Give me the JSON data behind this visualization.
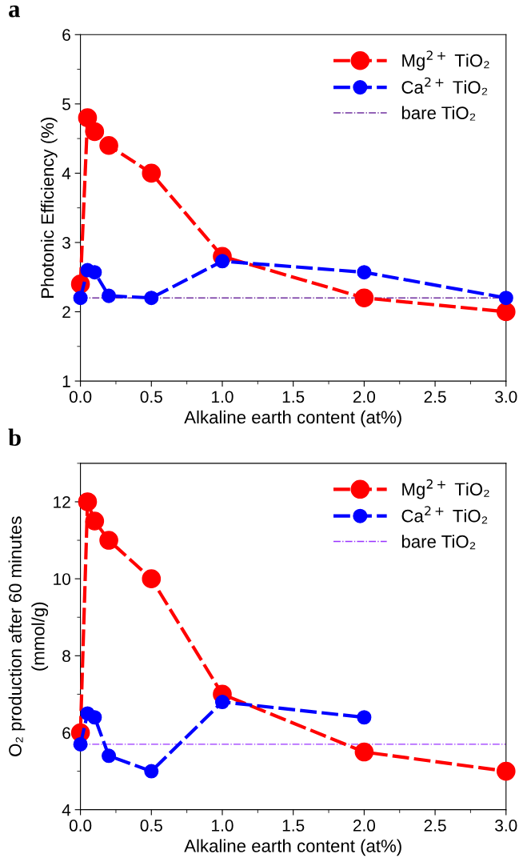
{
  "chart_data": [
    {
      "type": "line",
      "title": "a",
      "xlabel": "Alkaline earth content (at%)",
      "ylabel": "Photonic Efficiency (%)",
      "xlim": [
        0,
        3
      ],
      "xticks": [
        {
          "value": 0,
          "label": "0.0"
        },
        0.5,
        {
          "value": 1,
          "label": "1.0"
        },
        1.5,
        {
          "value": 2,
          "label": "2.0"
        },
        2.5,
        {
          "value": 3,
          "label": "3.0"
        }
      ],
      "ylim": [
        1,
        6
      ],
      "yticks": [
        1,
        2,
        3,
        4,
        5,
        6
      ],
      "marker": "circle",
      "line_style": "dashed",
      "legend": "top right",
      "grid": false,
      "series": [
        {
          "name": "Mg$^{2+}$ TiO₂",
          "color": "#ff0000",
          "x": [
            0,
            0.05,
            0.1,
            0.2,
            0.5,
            1,
            2,
            3
          ],
          "values": [
            2.4,
            4.8,
            4.6,
            4.4,
            4.0,
            2.8,
            2.2,
            2.0
          ]
        },
        {
          "name": "Ca$^{2+}$ TiO₂",
          "color": "#0000ff",
          "x": [
            0,
            0.05,
            0.1,
            0.2,
            0.5,
            1,
            2,
            3
          ],
          "values": [
            2.2,
            2.6,
            2.57,
            2.23,
            2.2,
            2.73,
            2.57,
            2.2
          ]
        }
      ],
      "ref_lines": [
        {
          "axis": "y",
          "value": 2.2,
          "label": "bare TiO₂",
          "color": "#7030a0",
          "line_style": "dashdot"
        }
      ]
    },
    {
      "type": "line",
      "title": "b",
      "xlabel": "Alkaline earth content (at%)",
      "ylabel": "O₂ production after 60 minutes\n(mmol/g)",
      "xlim": [
        0,
        3
      ],
      "xticks": [
        {
          "value": 0,
          "label": "0.0"
        },
        0.5,
        {
          "value": 1,
          "label": "1.0"
        },
        1.5,
        {
          "value": 2,
          "label": "2.0"
        },
        2.5,
        {
          "value": 3,
          "label": "3.0"
        }
      ],
      "ylim": [
        4,
        13
      ],
      "yticks": [
        4,
        6,
        8,
        10,
        12
      ],
      "marker": "circle",
      "line_style": "dashed",
      "legend": "top right",
      "grid": false,
      "series": [
        {
          "name": "Mg$^{2+}$ TiO₂",
          "color": "#ff0000",
          "x": [
            0,
            0.05,
            0.1,
            0.2,
            0.5,
            1,
            2,
            3
          ],
          "values": [
            6.0,
            12.0,
            11.5,
            11.0,
            10.0,
            7.0,
            5.5,
            5.0
          ]
        },
        {
          "name": "Ca$^{2+}$ TiO₂",
          "color": "#0000ff",
          "x": [
            0,
            0.05,
            0.1,
            0.2,
            0.5,
            1,
            2
          ],
          "values": [
            5.7,
            6.5,
            6.4,
            5.4,
            5.0,
            6.8,
            6.4
          ]
        }
      ],
      "ref_lines": [
        {
          "axis": "y",
          "value": 5.7,
          "label": "bare TiO₂",
          "color": "#9933ff",
          "line_style": "dashdot"
        }
      ]
    }
  ]
}
